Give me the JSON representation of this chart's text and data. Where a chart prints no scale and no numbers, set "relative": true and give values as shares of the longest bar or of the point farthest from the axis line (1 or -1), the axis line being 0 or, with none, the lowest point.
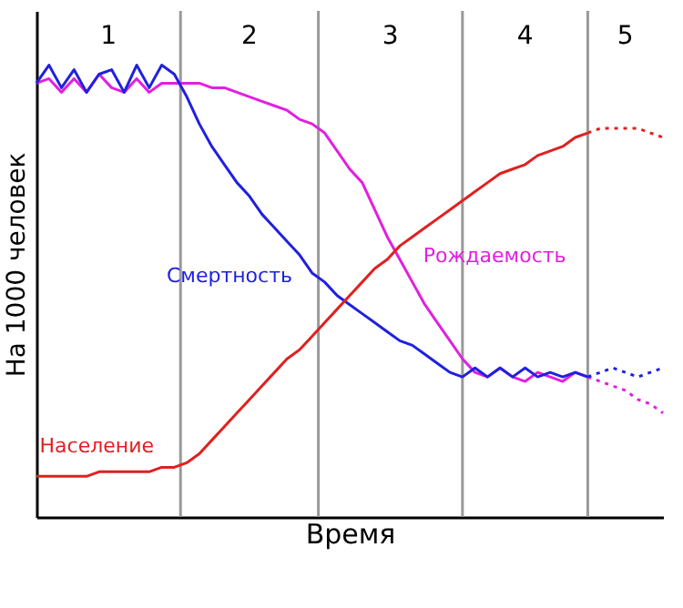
{
  "chart_data": {
    "type": "line",
    "relative": true,
    "xlabel": "Время",
    "ylabel": "На 1000 человек",
    "tick_labels": false,
    "legend": false,
    "categories": [
      null,
      null,
      null,
      null,
      null,
      null,
      null,
      null,
      null,
      null,
      null,
      null,
      null,
      null,
      null,
      null,
      null,
      null,
      null,
      null,
      null,
      null,
      null,
      null,
      null,
      null,
      null,
      null,
      null,
      null,
      null,
      null,
      null,
      null,
      null,
      null,
      null,
      null,
      null,
      null,
      null,
      null,
      null,
      null,
      null,
      null,
      null,
      null,
      null,
      null,
      null
    ],
    "annotations": [
      "1",
      "2",
      "3",
      "4",
      "5"
    ],
    "series": [
      {
        "name": "Рождаемость",
        "color": "#e020e0",
        "line_style": "solid",
        "values": [
          0.96,
          0.97,
          0.94,
          0.97,
          0.94,
          0.98,
          0.95,
          0.94,
          0.97,
          0.94,
          0.96,
          0.96,
          0.96,
          0.96,
          0.95,
          0.95,
          0.94,
          0.93,
          0.92,
          0.91,
          0.9,
          0.88,
          0.87,
          0.85,
          0.81,
          0.77,
          0.74,
          0.68,
          0.62,
          0.57,
          0.52,
          0.47,
          0.43,
          0.39,
          0.35,
          0.32,
          0.31,
          0.33,
          0.31,
          0.3,
          0.32,
          0.31,
          0.3,
          0.32,
          0.31,
          null,
          null,
          null,
          null,
          null,
          null
        ]
      },
      {
        "color": "#e020e0",
        "line_style": "dotted",
        "values": [
          null,
          null,
          null,
          null,
          null,
          null,
          null,
          null,
          null,
          null,
          null,
          null,
          null,
          null,
          null,
          null,
          null,
          null,
          null,
          null,
          null,
          null,
          null,
          null,
          null,
          null,
          null,
          null,
          null,
          null,
          null,
          null,
          null,
          null,
          null,
          null,
          null,
          null,
          null,
          null,
          null,
          null,
          null,
          null,
          0.31,
          0.3,
          0.29,
          0.28,
          0.26,
          0.25,
          0.23
        ]
      },
      {
        "name": "Смертность",
        "color": "#2020e0",
        "line_style": "solid",
        "values": [
          0.96,
          1.0,
          0.95,
          0.99,
          0.94,
          0.98,
          0.99,
          0.94,
          1.0,
          0.95,
          1.0,
          0.98,
          0.93,
          0.87,
          0.82,
          0.78,
          0.74,
          0.71,
          0.67,
          0.64,
          0.61,
          0.58,
          0.54,
          0.52,
          0.49,
          0.47,
          0.45,
          0.43,
          0.41,
          0.39,
          0.38,
          0.36,
          0.34,
          0.32,
          0.31,
          0.33,
          0.31,
          0.33,
          0.31,
          0.33,
          0.31,
          0.32,
          0.31,
          0.32,
          0.31,
          null,
          null,
          null,
          null,
          null,
          null
        ]
      },
      {
        "color": "#2020e0",
        "line_style": "dotted",
        "values": [
          null,
          null,
          null,
          null,
          null,
          null,
          null,
          null,
          null,
          null,
          null,
          null,
          null,
          null,
          null,
          null,
          null,
          null,
          null,
          null,
          null,
          null,
          null,
          null,
          null,
          null,
          null,
          null,
          null,
          null,
          null,
          null,
          null,
          null,
          null,
          null,
          null,
          null,
          null,
          null,
          null,
          null,
          null,
          null,
          0.31,
          0.32,
          0.33,
          0.32,
          0.31,
          0.32,
          0.33
        ]
      },
      {
        "name": "Население",
        "color": "#e02020",
        "line_style": "solid",
        "values": [
          0.09,
          0.09,
          0.09,
          0.09,
          0.09,
          0.1,
          0.1,
          0.1,
          0.1,
          0.1,
          0.11,
          0.11,
          0.12,
          0.14,
          0.17,
          0.2,
          0.23,
          0.26,
          0.29,
          0.32,
          0.35,
          0.37,
          0.4,
          0.43,
          0.46,
          0.49,
          0.52,
          0.55,
          0.57,
          0.6,
          0.62,
          0.64,
          0.66,
          0.68,
          0.7,
          0.72,
          0.74,
          0.76,
          0.77,
          0.78,
          0.8,
          0.81,
          0.82,
          0.84,
          0.85,
          null,
          null,
          null,
          null,
          null,
          null
        ]
      },
      {
        "color": "#e02020",
        "line_style": "dotted",
        "values": [
          null,
          null,
          null,
          null,
          null,
          null,
          null,
          null,
          null,
          null,
          null,
          null,
          null,
          null,
          null,
          null,
          null,
          null,
          null,
          null,
          null,
          null,
          null,
          null,
          null,
          null,
          null,
          null,
          null,
          null,
          null,
          null,
          null,
          null,
          null,
          null,
          null,
          null,
          null,
          null,
          null,
          null,
          null,
          null,
          0.85,
          0.86,
          0.86,
          0.86,
          0.86,
          0.85,
          0.84
        ]
      }
    ]
  }
}
